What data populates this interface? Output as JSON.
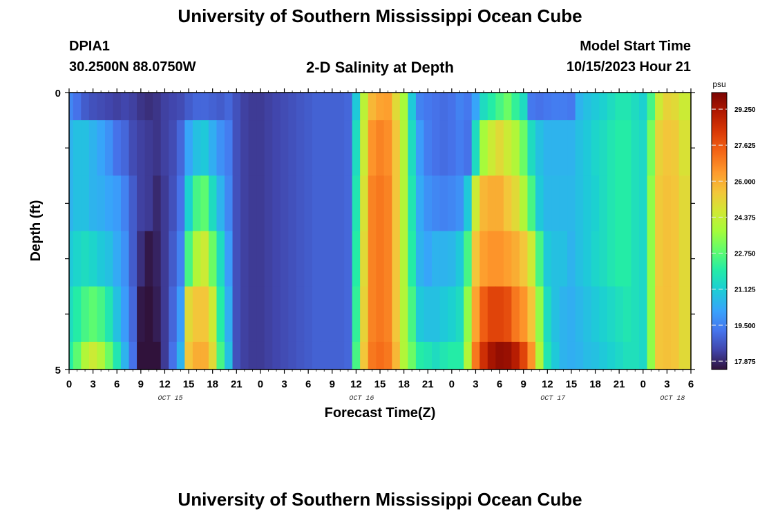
{
  "header": {
    "title": "University of Southern Mississippi Ocean Cube",
    "station": "DPIA1",
    "coords": "30.2500N  88.0750W",
    "subtitle": "2-D Salinity at Depth",
    "start_label": "Model Start Time",
    "start_value": "10/15/2023 Hour 21",
    "repeat_title": "University of Southern Mississippi Ocean Cube"
  },
  "chart_data": {
    "type": "heatmap",
    "title": "2-D Salinity at Depth",
    "xlabel": "Forecast Time(Z)",
    "ylabel": "Depth (ft)",
    "ylim": [
      0,
      5
    ],
    "y_ticks": [
      "0",
      "5"
    ],
    "x_tick_labels": [
      "0",
      "3",
      "6",
      "9",
      "12",
      "15",
      "18",
      "21",
      "0",
      "3",
      "6",
      "9",
      "12",
      "15",
      "18",
      "21",
      "0",
      "3",
      "6",
      "9",
      "12",
      "15",
      "18",
      "21",
      "0",
      "3",
      "6"
    ],
    "day_labels": [
      {
        "label": "OCT 15",
        "at_hour": 12
      },
      {
        "label": "OCT 16",
        "at_hour": 36
      },
      {
        "label": "OCT 17",
        "at_hour": 60
      },
      {
        "label": "OCT 18",
        "at_hour": 75
      }
    ],
    "x_range_hours": [
      0,
      78
    ],
    "depth_levels": [
      0,
      1,
      2,
      3,
      4,
      5
    ],
    "colorbar": {
      "unit": "psu",
      "min": 17.5,
      "max": 30,
      "ticks": [
        "29.250",
        "27.625",
        "26.000",
        "24.375",
        "22.750",
        "21.125",
        "19.500",
        "17.875"
      ]
    },
    "columns_hours": [
      0,
      1,
      2,
      3,
      4,
      5,
      6,
      7,
      8,
      9,
      10,
      11,
      12,
      13,
      14,
      15,
      16,
      17,
      18,
      19,
      20,
      21,
      22,
      23,
      24,
      25,
      26,
      27,
      28,
      29,
      30,
      31,
      32,
      33,
      34,
      35,
      36,
      37,
      38,
      39,
      40,
      41,
      42,
      43,
      44,
      45,
      46,
      47,
      48,
      49,
      50,
      51,
      52,
      53,
      54,
      55,
      56,
      57,
      58,
      59,
      60,
      61,
      62,
      63,
      64,
      65,
      66,
      67,
      68,
      69,
      70,
      71,
      72,
      73,
      74,
      75,
      76,
      77
    ],
    "salinity": [
      [
        19.6,
        19.2,
        18.8,
        18.6,
        18.5,
        18.4,
        18.3,
        18.4,
        18.3,
        18.1,
        18.0,
        18.1,
        18.3,
        18.4,
        18.5,
        18.8,
        19.0,
        19.0,
        18.9,
        18.8,
        19.0,
        18.6,
        18.3,
        18.2,
        18.2,
        18.3,
        18.4,
        18.5,
        18.6,
        18.7,
        18.8,
        18.9,
        18.9,
        18.9,
        18.9,
        19.0,
        21.0,
        24.2,
        25.8,
        26.2,
        26.3,
        25.0,
        23.8,
        21.0,
        19.5,
        19.3,
        19.2,
        19.1,
        19.2,
        19.5,
        19.3,
        20.2,
        21.5,
        22.0,
        22.5,
        23.0,
        22.2,
        21.5,
        19.3,
        19.2,
        19.3,
        19.4,
        19.4,
        19.3,
        20.5,
        20.8,
        21.0,
        21.2,
        21.5,
        21.8,
        21.8,
        21.5,
        21.2,
        22.5,
        24.5,
        25.2,
        25.0,
        24.5
      ],
      [
        20.5,
        20.8,
        20.8,
        20.5,
        20.2,
        19.8,
        19.2,
        19.0,
        18.5,
        18.3,
        18.2,
        18.1,
        18.3,
        18.5,
        19.0,
        20.2,
        20.8,
        21.0,
        20.4,
        19.8,
        19.4,
        18.6,
        18.3,
        18.2,
        18.2,
        18.3,
        18.4,
        18.5,
        18.6,
        18.7,
        18.8,
        18.9,
        18.9,
        18.9,
        18.9,
        19.0,
        21.5,
        24.5,
        26.5,
        26.8,
        26.6,
        25.5,
        24.0,
        21.5,
        20.0,
        19.4,
        19.2,
        19.1,
        19.2,
        19.4,
        19.2,
        21.5,
        23.8,
        24.5,
        25.0,
        24.5,
        24.0,
        23.0,
        21.5,
        20.8,
        20.5,
        20.5,
        20.5,
        20.5,
        20.8,
        21.0,
        21.3,
        21.5,
        21.8,
        22.0,
        22.0,
        21.6,
        21.4,
        23.2,
        25.2,
        25.5,
        25.4,
        24.8
      ],
      [
        20.5,
        20.8,
        20.8,
        20.5,
        20.4,
        20.2,
        20.0,
        19.5,
        18.8,
        18.3,
        18.2,
        17.9,
        18.2,
        18.6,
        19.2,
        21.2,
        22.5,
        22.8,
        21.5,
        20.5,
        19.6,
        18.6,
        18.3,
        18.2,
        18.2,
        18.3,
        18.4,
        18.5,
        18.6,
        18.7,
        18.8,
        18.9,
        18.9,
        18.9,
        18.9,
        19.0,
        21.8,
        24.8,
        26.8,
        27.0,
        26.8,
        25.5,
        24.0,
        21.8,
        20.3,
        19.8,
        19.6,
        19.5,
        19.6,
        19.8,
        21.0,
        24.5,
        25.8,
        26.0,
        26.0,
        25.5,
        25.0,
        24.0,
        22.5,
        21.0,
        20.6,
        20.6,
        20.6,
        20.6,
        20.8,
        21.0,
        21.2,
        21.5,
        21.8,
        22.0,
        22.0,
        21.6,
        21.4,
        23.5,
        25.4,
        25.6,
        25.5,
        25.0
      ],
      [
        21.0,
        21.3,
        21.5,
        21.3,
        21.0,
        20.8,
        20.3,
        19.8,
        18.8,
        18.0,
        17.6,
        17.8,
        18.2,
        18.8,
        19.5,
        22.5,
        24.0,
        24.5,
        23.0,
        21.5,
        20.0,
        18.6,
        18.3,
        18.2,
        18.2,
        18.3,
        18.4,
        18.5,
        18.6,
        18.7,
        18.8,
        18.9,
        18.9,
        18.9,
        18.9,
        19.0,
        22.0,
        25.0,
        26.8,
        27.0,
        26.8,
        25.5,
        24.0,
        22.0,
        20.5,
        20.2,
        20.5,
        20.5,
        20.6,
        21.0,
        22.5,
        25.5,
        26.3,
        26.5,
        26.5,
        26.3,
        26.0,
        25.5,
        24.5,
        22.5,
        21.0,
        20.8,
        20.8,
        20.5,
        20.8,
        21.0,
        21.3,
        21.5,
        21.8,
        22.0,
        22.0,
        21.6,
        21.4,
        23.5,
        25.4,
        25.6,
        25.5,
        25.0
      ],
      [
        21.5,
        22.0,
        22.5,
        22.8,
        22.5,
        21.8,
        20.8,
        20.0,
        19.0,
        17.6,
        17.3,
        17.7,
        18.2,
        19.0,
        20.0,
        25.0,
        25.5,
        25.5,
        24.5,
        22.0,
        20.4,
        18.6,
        18.3,
        18.2,
        18.2,
        18.3,
        18.4,
        18.5,
        18.6,
        18.7,
        18.8,
        18.9,
        18.9,
        18.9,
        18.9,
        19.0,
        22.2,
        25.2,
        26.8,
        27.0,
        26.8,
        25.5,
        24.0,
        22.5,
        21.0,
        20.8,
        20.8,
        21.0,
        21.2,
        21.5,
        23.5,
        26.2,
        27.5,
        28.0,
        28.0,
        27.8,
        27.0,
        26.5,
        25.5,
        23.5,
        21.5,
        20.8,
        20.5,
        20.4,
        20.6,
        20.8,
        21.0,
        21.2,
        21.4,
        21.6,
        21.8,
        21.6,
        21.4,
        23.5,
        25.5,
        25.6,
        25.5,
        25.0
      ],
      [
        22.0,
        22.8,
        24.0,
        24.5,
        24.0,
        23.0,
        21.8,
        20.5,
        19.2,
        17.4,
        17.0,
        17.4,
        18.2,
        19.2,
        20.5,
        25.5,
        26.0,
        26.0,
        25.0,
        22.5,
        20.8,
        18.6,
        18.3,
        18.2,
        18.2,
        18.3,
        18.4,
        18.5,
        18.6,
        18.7,
        18.8,
        18.9,
        18.9,
        18.9,
        18.9,
        19.0,
        22.5,
        25.5,
        27.0,
        27.2,
        27.0,
        25.8,
        24.0,
        23.0,
        22.0,
        21.8,
        21.5,
        21.8,
        22.0,
        22.0,
        24.0,
        27.0,
        28.5,
        29.3,
        29.6,
        29.5,
        29.0,
        28.0,
        26.5,
        24.0,
        21.8,
        21.0,
        20.5,
        20.4,
        20.5,
        20.7,
        20.8,
        21.0,
        21.2,
        21.4,
        21.6,
        21.6,
        21.4,
        23.5,
        25.5,
        25.6,
        25.5,
        25.0
      ]
    ]
  }
}
